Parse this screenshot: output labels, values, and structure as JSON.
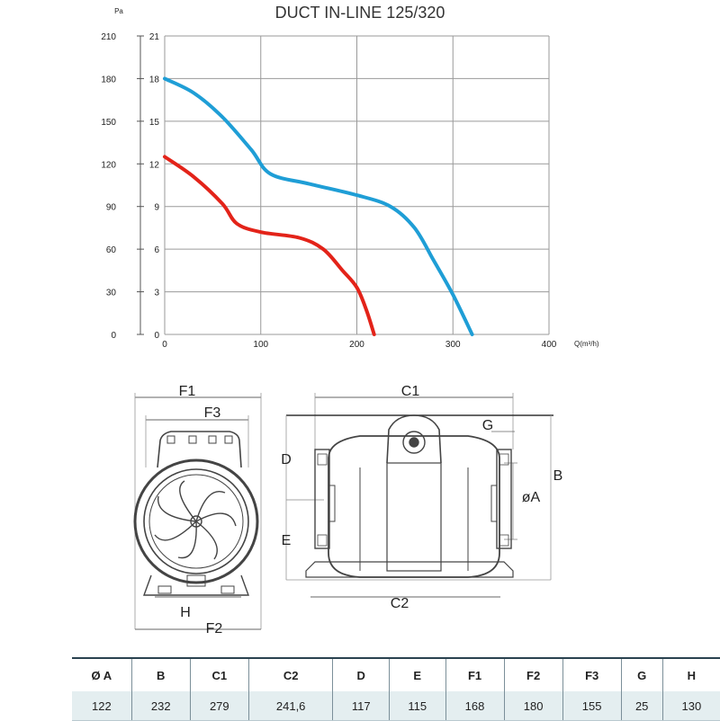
{
  "chart_data": {
    "type": "line",
    "title": "DUCT IN-LINE 125/320",
    "xlabel": "Q(m³/h)",
    "ylabel": "Pa",
    "xlim": [
      0,
      400
    ],
    "ylim": [
      0,
      210
    ],
    "x_ticks": [
      "0",
      "100",
      "200",
      "300",
      "400"
    ],
    "y_ticks_pa": [
      "0",
      "30",
      "60",
      "90",
      "120",
      "150",
      "180",
      "210"
    ],
    "y_ticks_secondary": [
      "0",
      "3",
      "6",
      "9",
      "12",
      "15",
      "18",
      "21"
    ],
    "grid": true,
    "series": [
      {
        "color": "#1f9ed6",
        "x": [
          0,
          30,
          60,
          90,
          110,
          150,
          200,
          235,
          260,
          280,
          300,
          320
        ],
        "y": [
          180,
          170,
          153,
          130,
          113,
          106,
          98,
          90,
          75,
          52,
          28,
          0
        ]
      },
      {
        "color": "#e32319",
        "x": [
          0,
          30,
          60,
          75,
          100,
          140,
          165,
          185,
          200,
          210,
          218
        ],
        "y": [
          125,
          111,
          92,
          78,
          72,
          68,
          60,
          45,
          33,
          17,
          0
        ]
      }
    ]
  },
  "drawing": {
    "labels": {
      "f1": "F1",
      "f3": "F3",
      "h": "H",
      "f2": "F2",
      "c1": "C1",
      "g": "G",
      "d": "D",
      "b": "B",
      "oa": "øA",
      "e": "E",
      "c2": "C2"
    }
  },
  "table": {
    "headers": [
      "Ø A",
      "B",
      "C1",
      "C2",
      "D",
      "E",
      "F1",
      "F2",
      "F3",
      "G",
      "H"
    ],
    "values": [
      "122",
      "232",
      "279",
      "241,6",
      "117",
      "115",
      "168",
      "180",
      "155",
      "25",
      "130"
    ]
  }
}
